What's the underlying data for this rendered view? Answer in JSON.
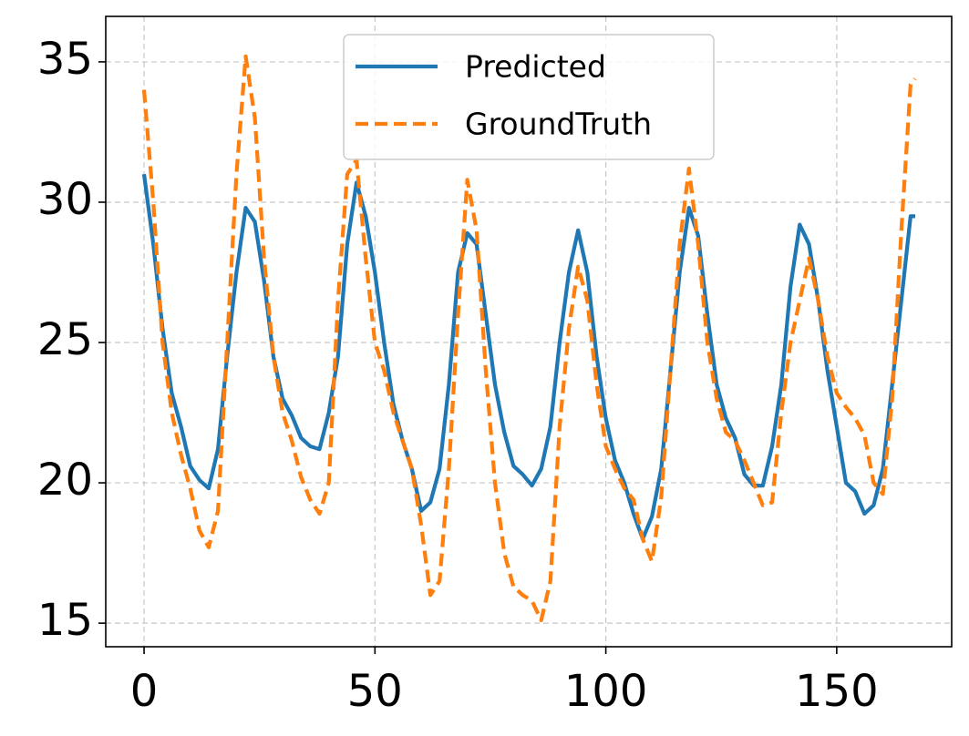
{
  "chart_data": {
    "type": "line",
    "x": [
      0,
      2,
      4,
      6,
      8,
      10,
      12,
      14,
      16,
      18,
      20,
      22,
      24,
      26,
      28,
      30,
      32,
      34,
      36,
      38,
      40,
      42,
      44,
      46,
      48,
      50,
      52,
      54,
      56,
      58,
      60,
      62,
      64,
      66,
      68,
      70,
      72,
      74,
      76,
      78,
      80,
      82,
      84,
      86,
      88,
      90,
      92,
      94,
      96,
      98,
      100,
      102,
      104,
      106,
      108,
      110,
      112,
      114,
      116,
      118,
      120,
      122,
      124,
      126,
      128,
      130,
      132,
      134,
      136,
      138,
      140,
      142,
      144,
      146,
      148,
      150,
      152,
      154,
      156,
      158,
      160,
      162,
      164,
      166,
      167
    ],
    "series": [
      {
        "name": "Predicted",
        "color": "#1f77b4",
        "dash": false,
        "values": [
          31.0,
          28.5,
          25.5,
          23.2,
          22.0,
          20.6,
          20.1,
          19.8,
          21.2,
          24.5,
          27.5,
          29.8,
          29.3,
          27.2,
          24.5,
          23.0,
          22.4,
          21.6,
          21.3,
          21.2,
          22.5,
          24.5,
          28.5,
          30.7,
          29.5,
          27.5,
          25.0,
          22.8,
          21.5,
          20.5,
          19.0,
          19.3,
          20.5,
          23.5,
          27.5,
          28.9,
          28.5,
          26.0,
          23.5,
          21.8,
          20.6,
          20.3,
          19.9,
          20.5,
          22.0,
          25.0,
          27.5,
          29.0,
          27.5,
          24.5,
          22.3,
          20.8,
          20.0,
          18.9,
          18.0,
          18.8,
          20.5,
          24.0,
          27.5,
          29.8,
          28.8,
          26.0,
          23.5,
          22.3,
          21.6,
          20.3,
          19.9,
          19.9,
          21.3,
          23.5,
          27.0,
          29.2,
          28.5,
          26.5,
          24.0,
          22.0,
          20.0,
          19.7,
          18.9,
          19.2,
          20.5,
          23.5,
          26.5,
          29.5,
          29.5
        ]
      },
      {
        "name": "GroundTruth",
        "color": "#ff7f0e",
        "dash": true,
        "values": [
          34.0,
          30.0,
          25.0,
          22.5,
          21.0,
          19.8,
          18.3,
          17.7,
          19.0,
          25.0,
          31.0,
          35.2,
          33.0,
          28.0,
          24.5,
          22.5,
          21.5,
          20.2,
          19.4,
          18.9,
          20.0,
          26.5,
          31.0,
          31.5,
          28.0,
          25.0,
          24.0,
          22.5,
          21.5,
          20.5,
          18.5,
          16.0,
          16.5,
          20.5,
          26.0,
          30.8,
          29.0,
          24.0,
          20.0,
          17.5,
          16.3,
          16.0,
          15.8,
          15.1,
          16.5,
          22.0,
          25.5,
          27.7,
          26.5,
          23.5,
          21.3,
          20.5,
          19.8,
          19.4,
          18.0,
          17.2,
          19.5,
          24.0,
          28.5,
          31.2,
          28.5,
          25.0,
          23.0,
          21.8,
          21.5,
          20.8,
          20.0,
          19.2,
          19.3,
          22.5,
          25.0,
          26.5,
          28.0,
          26.5,
          24.5,
          23.2,
          22.7,
          22.3,
          21.7,
          20.0,
          19.6,
          23.0,
          29.0,
          34.2,
          34.4
        ]
      }
    ],
    "xlim": [
      -8.3,
      174.9
    ],
    "ylim": [
      14.16,
      36.62
    ],
    "xticks": [
      0,
      50,
      100,
      150
    ],
    "yticks": [
      15,
      20,
      25,
      30,
      35
    ],
    "grid": true,
    "legend": "upper center"
  }
}
